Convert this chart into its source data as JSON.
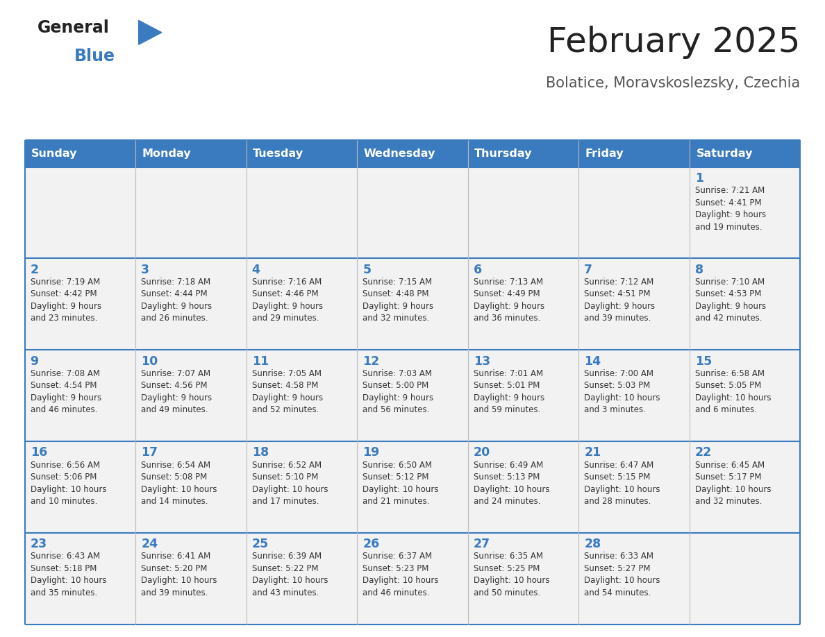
{
  "title": "February 2025",
  "subtitle": "Bolatice, Moravskoslezsky, Czechia",
  "header_color": "#3a7abf",
  "header_text_color": "#ffffff",
  "cell_bg_color": "#f2f2f2",
  "day_number_color": "#3a7abf",
  "text_color": "#333333",
  "line_color": "#3a7abf",
  "days_of_week": [
    "Sunday",
    "Monday",
    "Tuesday",
    "Wednesday",
    "Thursday",
    "Friday",
    "Saturday"
  ],
  "weeks": [
    [
      {
        "day": null,
        "info": null
      },
      {
        "day": null,
        "info": null
      },
      {
        "day": null,
        "info": null
      },
      {
        "day": null,
        "info": null
      },
      {
        "day": null,
        "info": null
      },
      {
        "day": null,
        "info": null
      },
      {
        "day": "1",
        "info": "Sunrise: 7:21 AM\nSunset: 4:41 PM\nDaylight: 9 hours\nand 19 minutes."
      }
    ],
    [
      {
        "day": "2",
        "info": "Sunrise: 7:19 AM\nSunset: 4:42 PM\nDaylight: 9 hours\nand 23 minutes."
      },
      {
        "day": "3",
        "info": "Sunrise: 7:18 AM\nSunset: 4:44 PM\nDaylight: 9 hours\nand 26 minutes."
      },
      {
        "day": "4",
        "info": "Sunrise: 7:16 AM\nSunset: 4:46 PM\nDaylight: 9 hours\nand 29 minutes."
      },
      {
        "day": "5",
        "info": "Sunrise: 7:15 AM\nSunset: 4:48 PM\nDaylight: 9 hours\nand 32 minutes."
      },
      {
        "day": "6",
        "info": "Sunrise: 7:13 AM\nSunset: 4:49 PM\nDaylight: 9 hours\nand 36 minutes."
      },
      {
        "day": "7",
        "info": "Sunrise: 7:12 AM\nSunset: 4:51 PM\nDaylight: 9 hours\nand 39 minutes."
      },
      {
        "day": "8",
        "info": "Sunrise: 7:10 AM\nSunset: 4:53 PM\nDaylight: 9 hours\nand 42 minutes."
      }
    ],
    [
      {
        "day": "9",
        "info": "Sunrise: 7:08 AM\nSunset: 4:54 PM\nDaylight: 9 hours\nand 46 minutes."
      },
      {
        "day": "10",
        "info": "Sunrise: 7:07 AM\nSunset: 4:56 PM\nDaylight: 9 hours\nand 49 minutes."
      },
      {
        "day": "11",
        "info": "Sunrise: 7:05 AM\nSunset: 4:58 PM\nDaylight: 9 hours\nand 52 minutes."
      },
      {
        "day": "12",
        "info": "Sunrise: 7:03 AM\nSunset: 5:00 PM\nDaylight: 9 hours\nand 56 minutes."
      },
      {
        "day": "13",
        "info": "Sunrise: 7:01 AM\nSunset: 5:01 PM\nDaylight: 9 hours\nand 59 minutes."
      },
      {
        "day": "14",
        "info": "Sunrise: 7:00 AM\nSunset: 5:03 PM\nDaylight: 10 hours\nand 3 minutes."
      },
      {
        "day": "15",
        "info": "Sunrise: 6:58 AM\nSunset: 5:05 PM\nDaylight: 10 hours\nand 6 minutes."
      }
    ],
    [
      {
        "day": "16",
        "info": "Sunrise: 6:56 AM\nSunset: 5:06 PM\nDaylight: 10 hours\nand 10 minutes."
      },
      {
        "day": "17",
        "info": "Sunrise: 6:54 AM\nSunset: 5:08 PM\nDaylight: 10 hours\nand 14 minutes."
      },
      {
        "day": "18",
        "info": "Sunrise: 6:52 AM\nSunset: 5:10 PM\nDaylight: 10 hours\nand 17 minutes."
      },
      {
        "day": "19",
        "info": "Sunrise: 6:50 AM\nSunset: 5:12 PM\nDaylight: 10 hours\nand 21 minutes."
      },
      {
        "day": "20",
        "info": "Sunrise: 6:49 AM\nSunset: 5:13 PM\nDaylight: 10 hours\nand 24 minutes."
      },
      {
        "day": "21",
        "info": "Sunrise: 6:47 AM\nSunset: 5:15 PM\nDaylight: 10 hours\nand 28 minutes."
      },
      {
        "day": "22",
        "info": "Sunrise: 6:45 AM\nSunset: 5:17 PM\nDaylight: 10 hours\nand 32 minutes."
      }
    ],
    [
      {
        "day": "23",
        "info": "Sunrise: 6:43 AM\nSunset: 5:18 PM\nDaylight: 10 hours\nand 35 minutes."
      },
      {
        "day": "24",
        "info": "Sunrise: 6:41 AM\nSunset: 5:20 PM\nDaylight: 10 hours\nand 39 minutes."
      },
      {
        "day": "25",
        "info": "Sunrise: 6:39 AM\nSunset: 5:22 PM\nDaylight: 10 hours\nand 43 minutes."
      },
      {
        "day": "26",
        "info": "Sunrise: 6:37 AM\nSunset: 5:23 PM\nDaylight: 10 hours\nand 46 minutes."
      },
      {
        "day": "27",
        "info": "Sunrise: 6:35 AM\nSunset: 5:25 PM\nDaylight: 10 hours\nand 50 minutes."
      },
      {
        "day": "28",
        "info": "Sunrise: 6:33 AM\nSunset: 5:27 PM\nDaylight: 10 hours\nand 54 minutes."
      },
      {
        "day": null,
        "info": null
      }
    ]
  ],
  "logo_triangle_color": "#3a7abf",
  "logo_general_color": "#222222",
  "logo_blue_color": "#3a7abf",
  "title_color": "#222222",
  "subtitle_color": "#555555"
}
